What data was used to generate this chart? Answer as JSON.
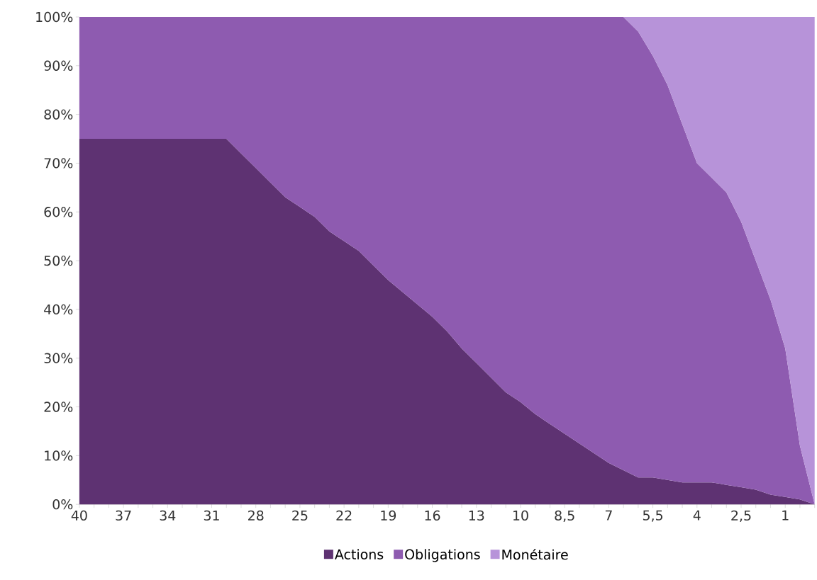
{
  "chart_data": {
    "type": "area",
    "stacked": true,
    "legend": "bottom",
    "categories": [
      "40",
      null,
      null,
      "37",
      null,
      null,
      "34",
      null,
      null,
      "31",
      null,
      null,
      "28",
      null,
      null,
      "25",
      null,
      null,
      "22",
      null,
      null,
      "19",
      null,
      null,
      "16",
      null,
      null,
      "13",
      null,
      null,
      "10",
      null,
      null,
      "8,5",
      null,
      null,
      "7",
      null,
      null,
      "5,5",
      null,
      null,
      "4",
      null,
      null,
      "2,5",
      null,
      null,
      "1",
      null,
      null
    ],
    "ylim": [
      0,
      100
    ],
    "yticks": [
      {
        "value": 0,
        "label": "0%"
      },
      {
        "value": 10,
        "label": "10%"
      },
      {
        "value": 20,
        "label": "20%"
      },
      {
        "value": 30,
        "label": "30%"
      },
      {
        "value": 40,
        "label": "40%"
      },
      {
        "value": 50,
        "label": "50%"
      },
      {
        "value": 60,
        "label": "60%"
      },
      {
        "value": 70,
        "label": "70%"
      },
      {
        "value": 80,
        "label": "80%"
      },
      {
        "value": 90,
        "label": "90%"
      },
      {
        "value": 100,
        "label": "100%"
      }
    ],
    "series": [
      {
        "name": "Actions",
        "color": "#5e3272",
        "values": [
          75,
          75,
          75,
          75,
          75,
          75,
          75,
          75,
          75,
          75,
          75,
          72,
          69,
          66,
          63,
          61,
          59,
          56,
          54,
          52,
          49,
          46,
          43.5,
          41,
          38.5,
          35.5,
          32,
          29,
          26,
          23,
          21,
          18.5,
          16.5,
          14.5,
          12.5,
          10.5,
          8.5,
          7,
          5.5,
          5.5,
          5,
          4.5,
          4.5,
          4.5,
          4,
          3.5,
          3,
          2,
          1.5,
          1,
          0
        ]
      },
      {
        "name": "Obligations",
        "color": "#8e5bb0",
        "values": [
          25,
          25,
          25,
          25,
          25,
          25,
          25,
          25,
          25,
          25,
          25,
          28,
          31,
          34,
          37,
          39,
          41,
          44,
          46,
          48,
          51,
          54,
          56.5,
          59,
          61.5,
          64.5,
          68,
          71,
          74,
          77,
          79,
          81.5,
          83.5,
          85.5,
          87.5,
          89.5,
          91.5,
          93,
          91.5,
          86.5,
          81,
          73.5,
          65.5,
          62.5,
          60,
          54.5,
          47,
          40,
          30.5,
          11,
          0
        ]
      },
      {
        "name": "Monétaire",
        "color": "#b793d9",
        "values": [
          null,
          null,
          null,
          null,
          null,
          null,
          null,
          null,
          null,
          null,
          null,
          null,
          null,
          null,
          null,
          null,
          null,
          null,
          null,
          null,
          null,
          null,
          null,
          null,
          null,
          null,
          null,
          null,
          null,
          null,
          null,
          null,
          null,
          null,
          null,
          null,
          null,
          0,
          3,
          8,
          14,
          22,
          30,
          33,
          36,
          42,
          50,
          58,
          68,
          88,
          100
        ]
      }
    ]
  }
}
